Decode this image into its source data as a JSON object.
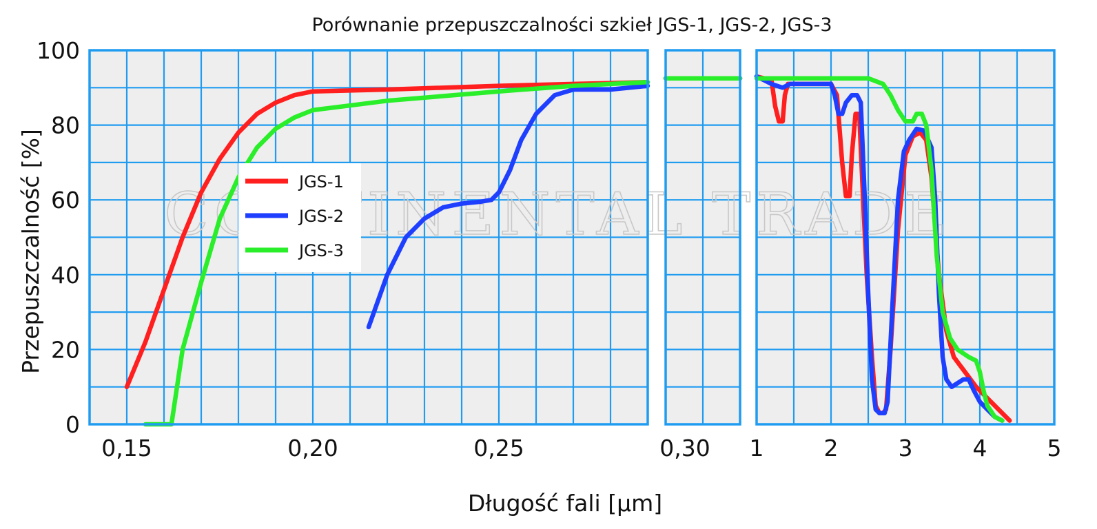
{
  "chart_data": {
    "type": "line",
    "title": "Porównanie przepuszczalności szkieł  JGS-1, JGS-2, JGS-3",
    "xlabel": "Długość fali [µm]",
    "ylabel": "Przepuszczalność [%]",
    "ylim": [
      0,
      100
    ],
    "yticks": [
      "0",
      "20",
      "40",
      "60",
      "80",
      "100"
    ],
    "watermark": "CONTINENTAL TRADE",
    "grid": true,
    "legend_position": "inside-left",
    "colors": {
      "JGS-1": "#ff1f1f",
      "JGS-2": "#1f3fff",
      "JGS-3": "#2aee2a",
      "grid": "#1f9bf0",
      "plot_bg": "#eeeeee"
    },
    "segments": [
      {
        "id": "uv",
        "xlim": [
          0.14,
          0.29
        ],
        "xticks": [
          "0,15",
          "0,20",
          "0,25",
          "0,30"
        ],
        "xtick_values": [
          0.15,
          0.2,
          0.25,
          0.3
        ]
      },
      {
        "id": "mid",
        "xlim": [
          0.29,
          0.31
        ],
        "xticks": [],
        "xtick_values": []
      },
      {
        "id": "ir",
        "xlim": [
          1.0,
          5.0
        ],
        "xticks": [
          "1",
          "2",
          "3",
          "4",
          "5"
        ],
        "xtick_values": [
          1,
          2,
          3,
          4,
          5
        ]
      }
    ],
    "series": [
      {
        "name": "JGS-1",
        "segments": {
          "uv": [
            [
              0.15,
              10
            ],
            [
              0.155,
              22
            ],
            [
              0.16,
              36
            ],
            [
              0.165,
              50
            ],
            [
              0.17,
              62
            ],
            [
              0.175,
              71
            ],
            [
              0.18,
              78
            ],
            [
              0.185,
              83
            ],
            [
              0.19,
              86
            ],
            [
              0.195,
              88
            ],
            [
              0.2,
              89
            ],
            [
              0.22,
              89.5
            ],
            [
              0.25,
              90.5
            ],
            [
              0.27,
              91
            ],
            [
              0.29,
              91.5
            ]
          ],
          "mid": [
            [
              0.29,
              92.5
            ],
            [
              0.31,
              92.5
            ]
          ],
          "ir": [
            [
              1.0,
              93
            ],
            [
              1.2,
              92
            ],
            [
              1.25,
              85
            ],
            [
              1.3,
              81
            ],
            [
              1.35,
              81
            ],
            [
              1.38,
              88
            ],
            [
              1.42,
              91
            ],
            [
              2.0,
              91
            ],
            [
              2.08,
              88
            ],
            [
              2.15,
              70
            ],
            [
              2.2,
              61
            ],
            [
              2.25,
              61
            ],
            [
              2.28,
              72
            ],
            [
              2.33,
              83
            ],
            [
              2.38,
              83
            ],
            [
              2.42,
              65
            ],
            [
              2.48,
              40
            ],
            [
              2.55,
              18
            ],
            [
              2.6,
              5
            ],
            [
              2.65,
              3
            ],
            [
              2.7,
              3
            ],
            [
              2.74,
              4
            ],
            [
              2.8,
              20
            ],
            [
              2.9,
              52
            ],
            [
              3.0,
              72
            ],
            [
              3.1,
              77
            ],
            [
              3.2,
              78
            ],
            [
              3.28,
              76
            ],
            [
              3.35,
              66
            ],
            [
              3.45,
              40
            ],
            [
              3.55,
              25
            ],
            [
              3.65,
              18
            ],
            [
              3.8,
              14
            ],
            [
              3.95,
              10
            ],
            [
              4.1,
              7
            ],
            [
              4.25,
              4
            ],
            [
              4.4,
              1
            ]
          ]
        }
      },
      {
        "name": "JGS-2",
        "segments": {
          "uv": [
            [
              0.215,
              26
            ],
            [
              0.22,
              40
            ],
            [
              0.225,
              50
            ],
            [
              0.23,
              55
            ],
            [
              0.235,
              58
            ],
            [
              0.24,
              59
            ],
            [
              0.245,
              59.5
            ],
            [
              0.248,
              60
            ],
            [
              0.25,
              62
            ],
            [
              0.253,
              68
            ],
            [
              0.256,
              76
            ],
            [
              0.26,
              83
            ],
            [
              0.265,
              88
            ],
            [
              0.27,
              89.5
            ],
            [
              0.28,
              89.5
            ],
            [
              0.29,
              90.5
            ]
          ],
          "mid": [
            [
              0.29,
              92.5
            ],
            [
              0.31,
              92.5
            ]
          ],
          "ir": [
            [
              1.0,
              93
            ],
            [
              1.2,
              91
            ],
            [
              1.35,
              90
            ],
            [
              1.45,
              91
            ],
            [
              1.8,
              91
            ],
            [
              2.0,
              91
            ],
            [
              2.05,
              88
            ],
            [
              2.1,
              83
            ],
            [
              2.15,
              83
            ],
            [
              2.2,
              86
            ],
            [
              2.28,
              88
            ],
            [
              2.35,
              88
            ],
            [
              2.4,
              86
            ],
            [
              2.45,
              62
            ],
            [
              2.5,
              35
            ],
            [
              2.55,
              12
            ],
            [
              2.6,
              4
            ],
            [
              2.65,
              3
            ],
            [
              2.72,
              3
            ],
            [
              2.76,
              6
            ],
            [
              2.82,
              30
            ],
            [
              2.9,
              60
            ],
            [
              2.98,
              73
            ],
            [
              3.05,
              76
            ],
            [
              3.15,
              79
            ],
            [
              3.25,
              78.5
            ],
            [
              3.35,
              74
            ],
            [
              3.4,
              60
            ],
            [
              3.45,
              35
            ],
            [
              3.5,
              18
            ],
            [
              3.55,
              12
            ],
            [
              3.62,
              10
            ],
            [
              3.7,
              11
            ],
            [
              3.78,
              12
            ],
            [
              3.85,
              12
            ],
            [
              3.92,
              9
            ],
            [
              4.0,
              6
            ],
            [
              4.1,
              4
            ],
            [
              4.2,
              2
            ],
            [
              4.3,
              1
            ]
          ]
        }
      },
      {
        "name": "JGS-3",
        "segments": {
          "uv": [
            [
              0.155,
              0
            ],
            [
              0.16,
              0
            ],
            [
              0.162,
              0
            ],
            [
              0.165,
              20
            ],
            [
              0.17,
              38
            ],
            [
              0.175,
              55
            ],
            [
              0.18,
              66
            ],
            [
              0.185,
              74
            ],
            [
              0.19,
              79
            ],
            [
              0.195,
              82
            ],
            [
              0.2,
              84
            ],
            [
              0.22,
              86.5
            ],
            [
              0.25,
              89
            ],
            [
              0.27,
              90.5
            ],
            [
              0.29,
              91.5
            ]
          ],
          "mid": [
            [
              0.29,
              92.5
            ],
            [
              0.31,
              92.5
            ]
          ],
          "ir": [
            [
              1.0,
              92.5
            ],
            [
              2.0,
              92.5
            ],
            [
              2.5,
              92.5
            ],
            [
              2.7,
              91
            ],
            [
              2.8,
              88
            ],
            [
              2.9,
              84
            ],
            [
              3.0,
              81
            ],
            [
              3.1,
              81
            ],
            [
              3.15,
              83
            ],
            [
              3.22,
              83
            ],
            [
              3.28,
              80
            ],
            [
              3.35,
              68
            ],
            [
              3.42,
              45
            ],
            [
              3.5,
              30
            ],
            [
              3.6,
              23
            ],
            [
              3.7,
              20
            ],
            [
              3.85,
              18
            ],
            [
              3.95,
              17
            ],
            [
              4.0,
              14
            ],
            [
              4.05,
              9
            ],
            [
              4.1,
              5
            ],
            [
              4.2,
              2
            ],
            [
              4.3,
              1
            ]
          ]
        }
      }
    ]
  }
}
